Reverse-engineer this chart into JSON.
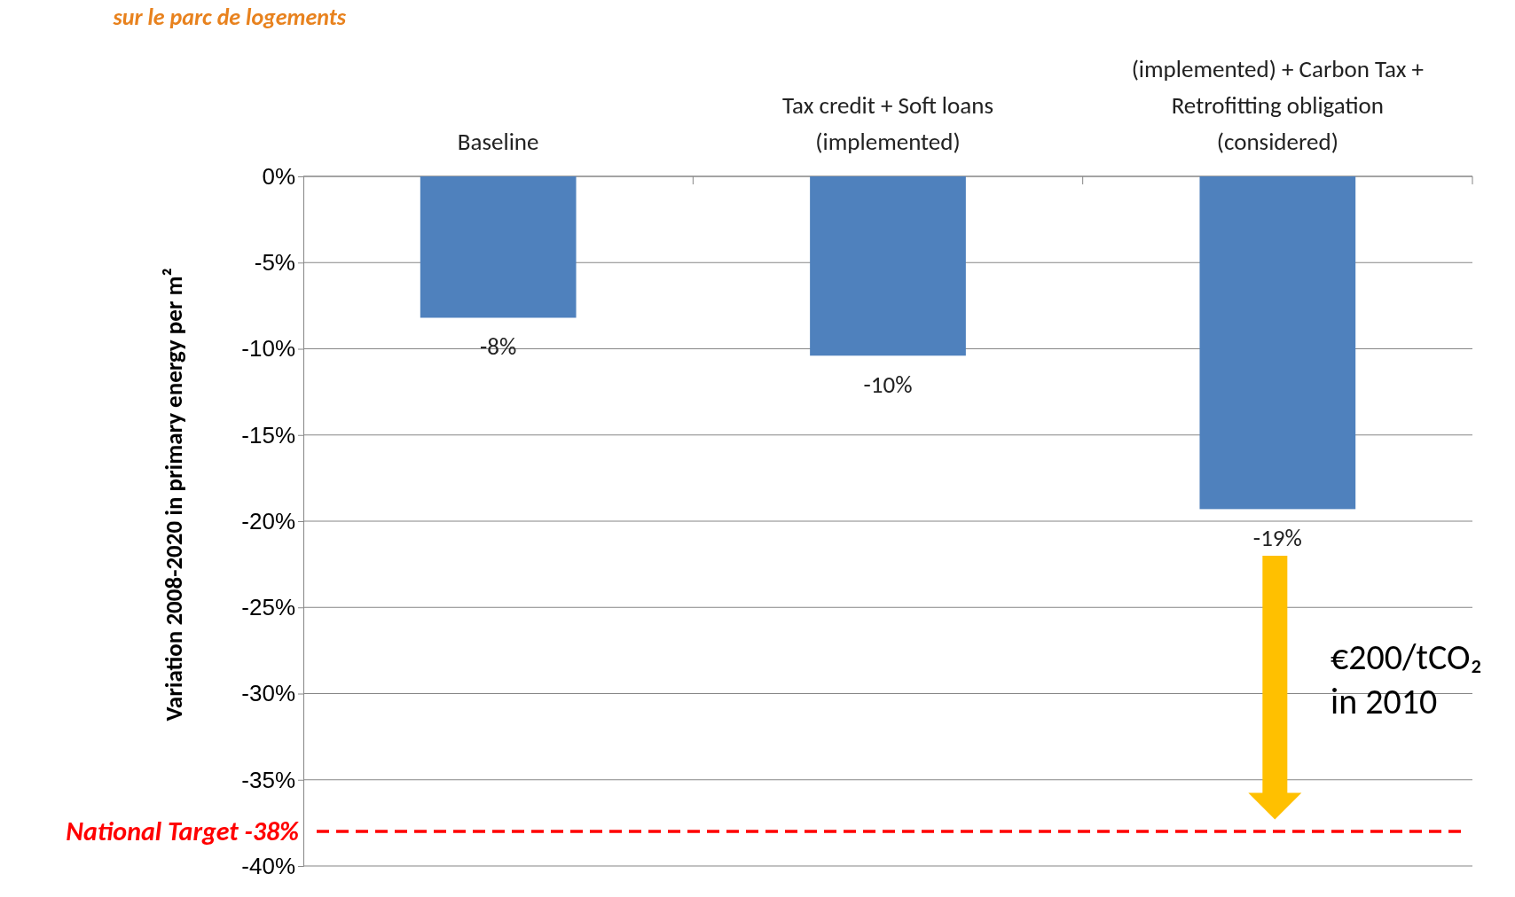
{
  "chart_data": {
    "type": "bar",
    "categories": [
      "Baseline",
      "Tax credit + Soft loans (implemented)",
      "(implemented) + Carbon Tax + Retrofitting obligation (considered)"
    ],
    "values": [
      -8.2,
      -10.4,
      -19.3
    ],
    "value_labels": [
      "-8%",
      "-10%",
      "-19%"
    ],
    "color": "#4f81bd",
    "ylabel": "Variation 2008-2020 in primary energy per m²",
    "ylim": [
      -40,
      0
    ],
    "yticks": [
      {
        "value": 0,
        "label": "0%"
      },
      {
        "value": -5,
        "label": "-5%"
      },
      {
        "value": -10,
        "label": "-10%"
      },
      {
        "value": -15,
        "label": "-15%"
      },
      {
        "value": -20,
        "label": "-20%"
      },
      {
        "value": -25,
        "label": "-25%"
      },
      {
        "value": -30,
        "label": "-30%"
      },
      {
        "value": -35,
        "label": "-35%"
      },
      {
        "value": -40,
        "label": "-40%"
      }
    ],
    "grid": "y",
    "ref_lines": [
      {
        "axis": "y",
        "value": -38,
        "label": "National Target -38%",
        "color": "#ff0000",
        "line_style": "dashed"
      }
    ],
    "annotations": [
      "€200/tCO₂ in 2010",
      "sur le parc de logements"
    ]
  }
}
